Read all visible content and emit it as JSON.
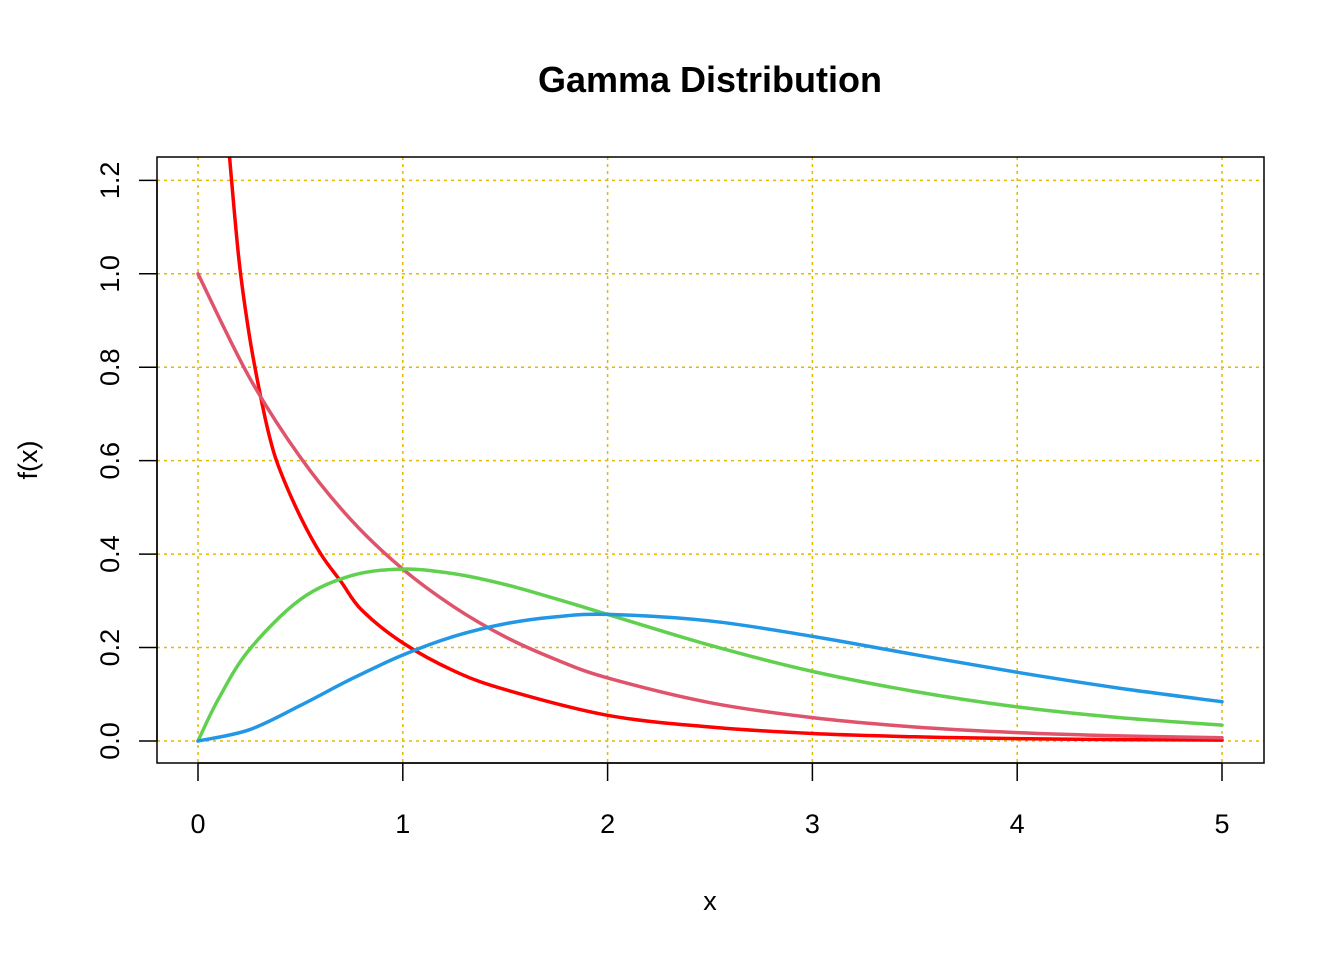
{
  "chart_data": {
    "type": "line",
    "title": "Gamma Distribution",
    "xlabel": "x",
    "ylabel": "f(x)",
    "xlim": [
      0,
      5
    ],
    "ylim": [
      0,
      1.25
    ],
    "x_ticks": [
      "0",
      "1",
      "2",
      "3",
      "4",
      "5"
    ],
    "y_ticks": [
      "0.0",
      "0.2",
      "0.4",
      "0.6",
      "0.8",
      "1.0",
      "1.2"
    ],
    "grid": true,
    "grid_color": "#E6B800",
    "legend": "none",
    "series": [
      {
        "color": "#FF0000",
        "x": [
          0.15,
          0.2,
          0.25,
          0.3,
          0.35,
          0.4,
          0.5,
          0.6,
          0.7,
          0.8,
          1.0,
          1.25,
          1.5,
          2.0,
          2.5,
          3.0,
          3.5,
          4.0,
          4.5,
          5.0
        ],
        "y": [
          1.27,
          1.03,
          0.87,
          0.75,
          0.65,
          0.58,
          0.48,
          0.4,
          0.34,
          0.28,
          0.21,
          0.15,
          0.11,
          0.055,
          0.03,
          0.016,
          0.009,
          0.005,
          0.003,
          0.002
        ]
      },
      {
        "color": "#DF536B",
        "x": [
          0,
          0.25,
          0.5,
          0.75,
          1.0,
          1.25,
          1.5,
          1.75,
          2.0,
          2.5,
          3.0,
          3.5,
          4.0,
          4.5,
          5.0
        ],
        "y": [
          1.0,
          0.779,
          0.607,
          0.472,
          0.368,
          0.287,
          0.223,
          0.174,
          0.135,
          0.082,
          0.05,
          0.03,
          0.018,
          0.011,
          0.007
        ]
      },
      {
        "color": "#61D04F",
        "x": [
          0,
          0.1,
          0.25,
          0.5,
          0.75,
          1.0,
          1.25,
          1.5,
          1.75,
          2.0,
          2.5,
          3.0,
          3.5,
          4.0,
          4.5,
          5.0
        ],
        "y": [
          0,
          0.09,
          0.195,
          0.303,
          0.354,
          0.368,
          0.358,
          0.335,
          0.304,
          0.271,
          0.205,
          0.149,
          0.106,
          0.073,
          0.05,
          0.034
        ]
      },
      {
        "color": "#2297E6",
        "x": [
          0,
          0.25,
          0.5,
          0.75,
          1.0,
          1.25,
          1.5,
          1.75,
          2.0,
          2.5,
          3.0,
          3.5,
          4.0,
          4.5,
          5.0
        ],
        "y": [
          0,
          0.024,
          0.076,
          0.133,
          0.184,
          0.224,
          0.251,
          0.266,
          0.271,
          0.257,
          0.224,
          0.185,
          0.147,
          0.113,
          0.084
        ]
      }
    ]
  }
}
